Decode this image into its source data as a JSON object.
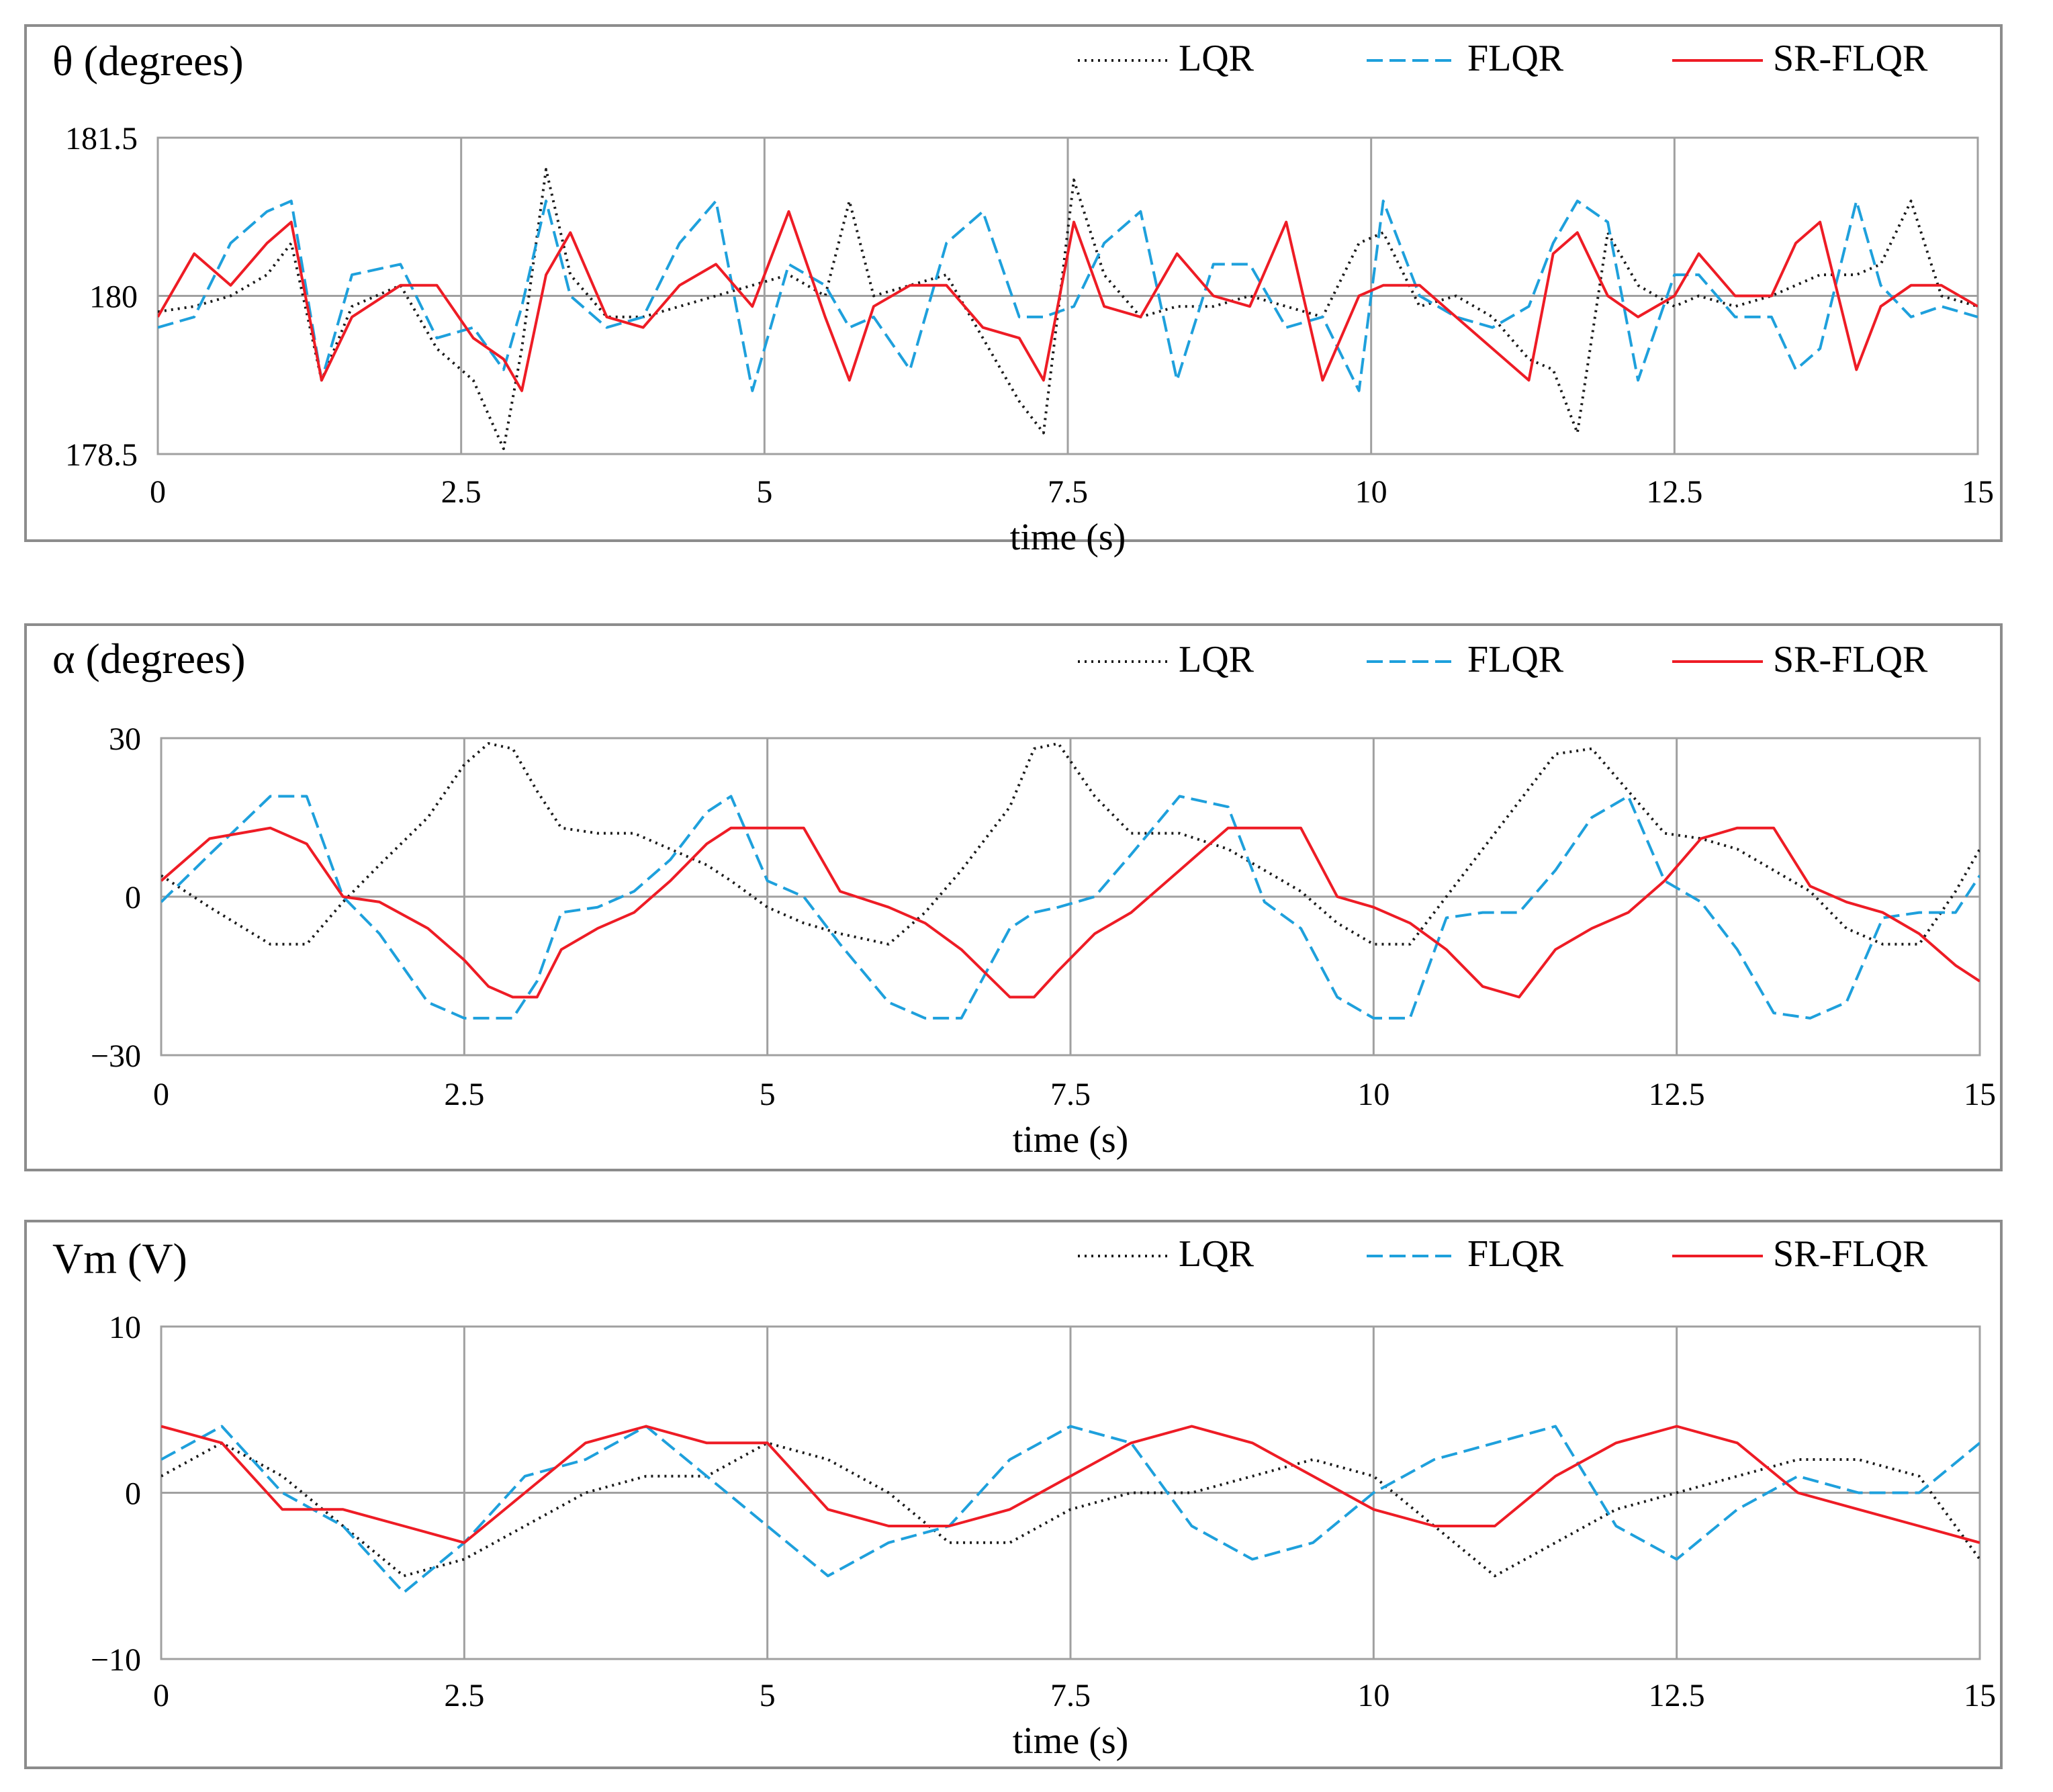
{
  "x_label": "time (s)",
  "series_styles": [
    {
      "name": "LQR",
      "color": "#1a1a1a",
      "dash": "dotted"
    },
    {
      "name": "FLQR",
      "color": "#1ea0dc",
      "dash": "dashed"
    },
    {
      "name": "SR-FLQR",
      "color": "#ee1c25",
      "dash": "solid"
    }
  ],
  "panels": [
    {
      "title": "θ (degrees)",
      "ylim": [
        178.5,
        181.5
      ],
      "yticks": [
        "181.5",
        "180",
        "178.5"
      ]
    },
    {
      "title": "α (degrees)",
      "ylim": [
        -30,
        30
      ],
      "yticks": [
        "30",
        "0",
        "−30"
      ]
    },
    {
      "title": "Vm (V)",
      "ylim": [
        -10,
        10
      ],
      "yticks": [
        "10",
        "0",
        "−10"
      ]
    }
  ],
  "xticks": [
    "0",
    "2.5",
    "5",
    "7.5",
    "10",
    "12.5",
    "15"
  ],
  "chart_data": [
    {
      "type": "line",
      "title": "θ (degrees)",
      "xlabel": "time (s)",
      "ylabel": "",
      "xlim": [
        0,
        15
      ],
      "ylim": [
        178.5,
        181.5
      ],
      "grid": true,
      "legend": "top-right",
      "x": [
        0,
        0.3,
        0.6,
        0.9,
        1.1,
        1.35,
        1.6,
        2.0,
        2.3,
        2.6,
        2.85,
        3.0,
        3.2,
        3.4,
        3.7,
        4.0,
        4.3,
        4.6,
        4.9,
        5.2,
        5.5,
        5.7,
        5.9,
        6.2,
        6.5,
        6.8,
        7.1,
        7.3,
        7.55,
        7.8,
        8.1,
        8.4,
        8.7,
        9.0,
        9.3,
        9.6,
        9.9,
        10.1,
        10.4,
        10.7,
        11.0,
        11.3,
        11.5,
        11.7,
        11.95,
        12.2,
        12.5,
        12.7,
        13.0,
        13.3,
        13.5,
        13.7,
        14.0,
        14.2,
        14.45,
        14.7,
        15
      ],
      "series": [
        {
          "name": "LQR",
          "values": [
            179.85,
            179.9,
            180.0,
            180.2,
            180.5,
            179.2,
            179.9,
            180.1,
            179.5,
            179.2,
            178.55,
            179.5,
            181.2,
            180.2,
            179.8,
            179.8,
            179.9,
            180.0,
            180.1,
            180.2,
            180.0,
            180.9,
            180.0,
            180.1,
            180.2,
            179.6,
            179.0,
            178.7,
            181.1,
            180.2,
            179.8,
            179.9,
            179.9,
            180.0,
            179.9,
            179.8,
            180.5,
            180.6,
            179.9,
            180.0,
            179.8,
            179.4,
            179.3,
            178.7,
            180.6,
            180.1,
            179.9,
            180.0,
            179.9,
            180.0,
            180.1,
            180.2,
            180.2,
            180.3,
            180.9,
            180.0,
            179.9
          ]
        },
        {
          "name": "FLQR",
          "values": [
            179.7,
            179.8,
            180.5,
            180.8,
            180.9,
            179.2,
            180.2,
            180.3,
            179.6,
            179.7,
            179.3,
            179.9,
            180.9,
            180.0,
            179.7,
            179.8,
            180.5,
            180.9,
            179.1,
            180.3,
            180.1,
            179.7,
            179.8,
            179.3,
            180.5,
            180.8,
            179.8,
            179.8,
            179.9,
            180.5,
            180.8,
            179.2,
            180.3,
            180.3,
            179.7,
            179.8,
            179.1,
            180.9,
            180.0,
            179.8,
            179.7,
            179.9,
            180.5,
            180.9,
            180.7,
            179.2,
            180.2,
            180.2,
            179.8,
            179.8,
            179.3,
            179.5,
            180.9,
            180.1,
            179.8,
            179.9,
            179.8
          ]
        },
        {
          "name": "SR-FLQR",
          "values": [
            179.8,
            180.4,
            180.1,
            180.5,
            180.7,
            179.2,
            179.8,
            180.1,
            180.1,
            179.6,
            179.4,
            179.1,
            180.2,
            180.6,
            179.8,
            179.7,
            180.1,
            180.3,
            179.9,
            180.8,
            179.8,
            179.2,
            179.9,
            180.1,
            180.1,
            179.7,
            179.6,
            179.2,
            180.7,
            179.9,
            179.8,
            180.4,
            180.0,
            179.9,
            180.7,
            179.2,
            180.0,
            180.1,
            180.1,
            179.8,
            179.5,
            179.2,
            180.4,
            180.6,
            180.0,
            179.8,
            180.0,
            180.4,
            180.0,
            180.0,
            180.5,
            180.7,
            179.3,
            179.9,
            180.1,
            180.1,
            179.9
          ]
        }
      ]
    },
    {
      "type": "line",
      "title": "α (degrees)",
      "xlabel": "time (s)",
      "ylabel": "",
      "xlim": [
        0,
        15
      ],
      "ylim": [
        -30,
        30
      ],
      "grid": true,
      "legend": "top-right",
      "x": [
        0,
        0.4,
        0.9,
        1.2,
        1.5,
        1.8,
        2.2,
        2.5,
        2.7,
        2.9,
        3.1,
        3.3,
        3.6,
        3.9,
        4.2,
        4.5,
        4.7,
        5.0,
        5.3,
        5.6,
        6.0,
        6.3,
        6.6,
        7.0,
        7.2,
        7.4,
        7.7,
        8.0,
        8.4,
        8.8,
        9.1,
        9.4,
        9.7,
        10.0,
        10.3,
        10.6,
        10.9,
        11.2,
        11.5,
        11.8,
        12.1,
        12.4,
        12.7,
        13.0,
        13.3,
        13.6,
        13.9,
        14.2,
        14.5,
        14.8,
        15
      ],
      "series": [
        {
          "name": "LQR",
          "values": [
            4,
            -2,
            -9,
            -9,
            -1,
            6,
            15,
            25,
            29,
            28,
            20,
            13,
            12,
            12,
            9,
            6,
            3,
            -2,
            -5,
            -7,
            -9,
            -3,
            5,
            17,
            28,
            29,
            19,
            12,
            12,
            9,
            5,
            1,
            -5,
            -9,
            -9,
            0,
            9,
            18,
            27,
            28,
            20,
            12,
            11,
            9,
            5,
            1,
            -6,
            -9,
            -9,
            1,
            9
          ]
        },
        {
          "name": "FLQR",
          "values": [
            -1,
            8,
            19,
            19,
            0,
            -7,
            -20,
            -23,
            -23,
            -23,
            -16,
            -3,
            -2,
            1,
            7,
            16,
            19,
            3,
            0,
            -9,
            -20,
            -23,
            -23,
            -6,
            -3,
            -2,
            0,
            8,
            19,
            17,
            -1,
            -6,
            -19,
            -23,
            -23,
            -4,
            -3,
            -3,
            5,
            15,
            19,
            3,
            -1,
            -10,
            -22,
            -23,
            -20,
            -4,
            -3,
            -3,
            4
          ]
        },
        {
          "name": "SR-FLQR",
          "values": [
            3,
            11,
            13,
            10,
            0,
            -1,
            -6,
            -12,
            -17,
            -19,
            -19,
            -10,
            -6,
            -3,
            3,
            10,
            13,
            13,
            13,
            1,
            -2,
            -5,
            -10,
            -19,
            -19,
            -14,
            -7,
            -3,
            5,
            13,
            13,
            13,
            0,
            -2,
            -5,
            -10,
            -17,
            -19,
            -10,
            -6,
            -3,
            3,
            11,
            13,
            13,
            2,
            -1,
            -3,
            -7,
            -13,
            -16
          ]
        }
      ]
    },
    {
      "type": "line",
      "title": "Vm (V)",
      "xlabel": "time (s)",
      "ylabel": "",
      "xlim": [
        0,
        15
      ],
      "ylim": [
        -10,
        10
      ],
      "grid": true,
      "legend": "top-right",
      "x": [
        0,
        0.5,
        1.0,
        1.5,
        2.0,
        2.5,
        3.0,
        3.5,
        4.0,
        4.5,
        5.0,
        5.5,
        6.0,
        6.5,
        7.0,
        7.5,
        8.0,
        8.5,
        9.0,
        9.5,
        10.0,
        10.5,
        11.0,
        11.5,
        12.0,
        12.5,
        13.0,
        13.5,
        14.0,
        14.5,
        15
      ],
      "series": [
        {
          "name": "LQR",
          "values": [
            1,
            3,
            1,
            -2,
            -5,
            -4,
            -2,
            0,
            1,
            1,
            3,
            2,
            0,
            -3,
            -3,
            -1,
            0,
            0,
            1,
            2,
            1,
            -2,
            -5,
            -3,
            -1,
            0,
            1,
            2,
            2,
            1,
            -4
          ]
        },
        {
          "name": "FLQR",
          "values": [
            2,
            4,
            0,
            -2,
            -6,
            -3,
            1,
            2,
            4,
            1,
            -2,
            -5,
            -3,
            -2,
            2,
            4,
            3,
            -2,
            -4,
            -3,
            0,
            2,
            3,
            4,
            -2,
            -4,
            -1,
            1,
            0,
            0,
            3
          ]
        },
        {
          "name": "SR-FLQR",
          "values": [
            4,
            3,
            -1,
            -1,
            -2,
            -3,
            0,
            3,
            4,
            3,
            3,
            -1,
            -2,
            -2,
            -1,
            1,
            3,
            4,
            3,
            1,
            -1,
            -2,
            -2,
            1,
            3,
            4,
            3,
            0,
            -1,
            -2,
            -3
          ]
        }
      ]
    }
  ]
}
